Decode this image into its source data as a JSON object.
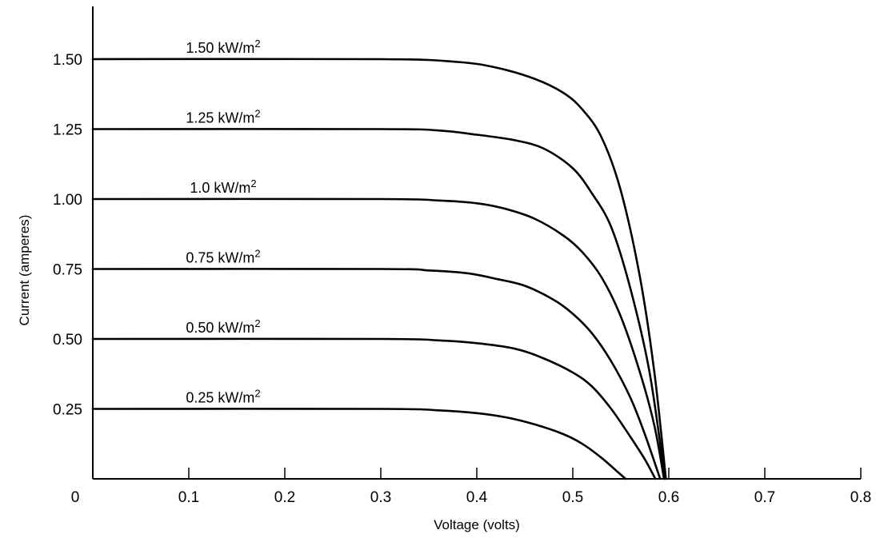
{
  "chart_data": {
    "type": "line",
    "xlabel": "Voltage (volts)",
    "ylabel": "Current (amperes)",
    "xlim": [
      0,
      0.8
    ],
    "ylim": [
      0,
      1.65
    ],
    "x_ticks": [
      0,
      0.1,
      0.2,
      0.3,
      0.4,
      0.5,
      0.6,
      0.7,
      0.8
    ],
    "x_tick_labels": [
      "0",
      "0.1",
      "0.2",
      "0.3",
      "0.4",
      "0.5",
      "0.6",
      "0.7",
      "0.8"
    ],
    "y_ticks": [
      0.25,
      0.5,
      0.75,
      1.0,
      1.25,
      1.5
    ],
    "y_tick_labels": [
      "0.25",
      "0.50",
      "0.75",
      "1.00",
      "1.25",
      "1.50"
    ],
    "grid": false,
    "legend": "none",
    "series": [
      {
        "name": "1.50 kW/m",
        "name_superscript": "2",
        "x": [
          0,
          0.3,
          0.38,
          0.42,
          0.46,
          0.49,
          0.51,
          0.53,
          0.55,
          0.57,
          0.585,
          0.597
        ],
        "y": [
          1.5,
          1.5,
          1.49,
          1.47,
          1.43,
          1.38,
          1.32,
          1.22,
          1.03,
          0.72,
          0.38,
          0.0
        ]
      },
      {
        "name": "1.25 kW/m",
        "name_superscript": "2",
        "x": [
          0,
          0.3,
          0.36,
          0.4,
          0.44,
          0.47,
          0.5,
          0.52,
          0.54,
          0.56,
          0.58,
          0.596
        ],
        "y": [
          1.25,
          1.25,
          1.245,
          1.23,
          1.21,
          1.18,
          1.11,
          1.02,
          0.9,
          0.68,
          0.38,
          0.0
        ]
      },
      {
        "name": "1.0 kW/m",
        "name_superscript": "2",
        "x": [
          0,
          0.3,
          0.36,
          0.4,
          0.43,
          0.46,
          0.49,
          0.51,
          0.53,
          0.55,
          0.57,
          0.585,
          0.595
        ],
        "y": [
          1.0,
          1.0,
          0.995,
          0.985,
          0.965,
          0.93,
          0.87,
          0.81,
          0.72,
          0.58,
          0.38,
          0.19,
          0.0
        ]
      },
      {
        "name": "0.75 kW/m",
        "name_superscript": "2",
        "x": [
          0,
          0.3,
          0.35,
          0.39,
          0.42,
          0.45,
          0.48,
          0.5,
          0.52,
          0.54,
          0.56,
          0.575,
          0.591
        ],
        "y": [
          0.75,
          0.75,
          0.745,
          0.735,
          0.715,
          0.69,
          0.64,
          0.59,
          0.52,
          0.42,
          0.29,
          0.16,
          0.0
        ]
      },
      {
        "name": "0.50 kW/m",
        "name_superscript": "2",
        "x": [
          0,
          0.3,
          0.36,
          0.4,
          0.44,
          0.47,
          0.5,
          0.52,
          0.54,
          0.56,
          0.575,
          0.586
        ],
        "y": [
          0.5,
          0.5,
          0.495,
          0.485,
          0.465,
          0.43,
          0.38,
          0.33,
          0.25,
          0.15,
          0.07,
          0.0
        ]
      },
      {
        "name": "0.25 kW/m",
        "name_superscript": "2",
        "x": [
          0,
          0.3,
          0.36,
          0.4,
          0.43,
          0.46,
          0.49,
          0.51,
          0.53,
          0.545,
          0.555
        ],
        "y": [
          0.25,
          0.25,
          0.245,
          0.235,
          0.22,
          0.195,
          0.16,
          0.125,
          0.075,
          0.03,
          0.0
        ]
      }
    ]
  }
}
